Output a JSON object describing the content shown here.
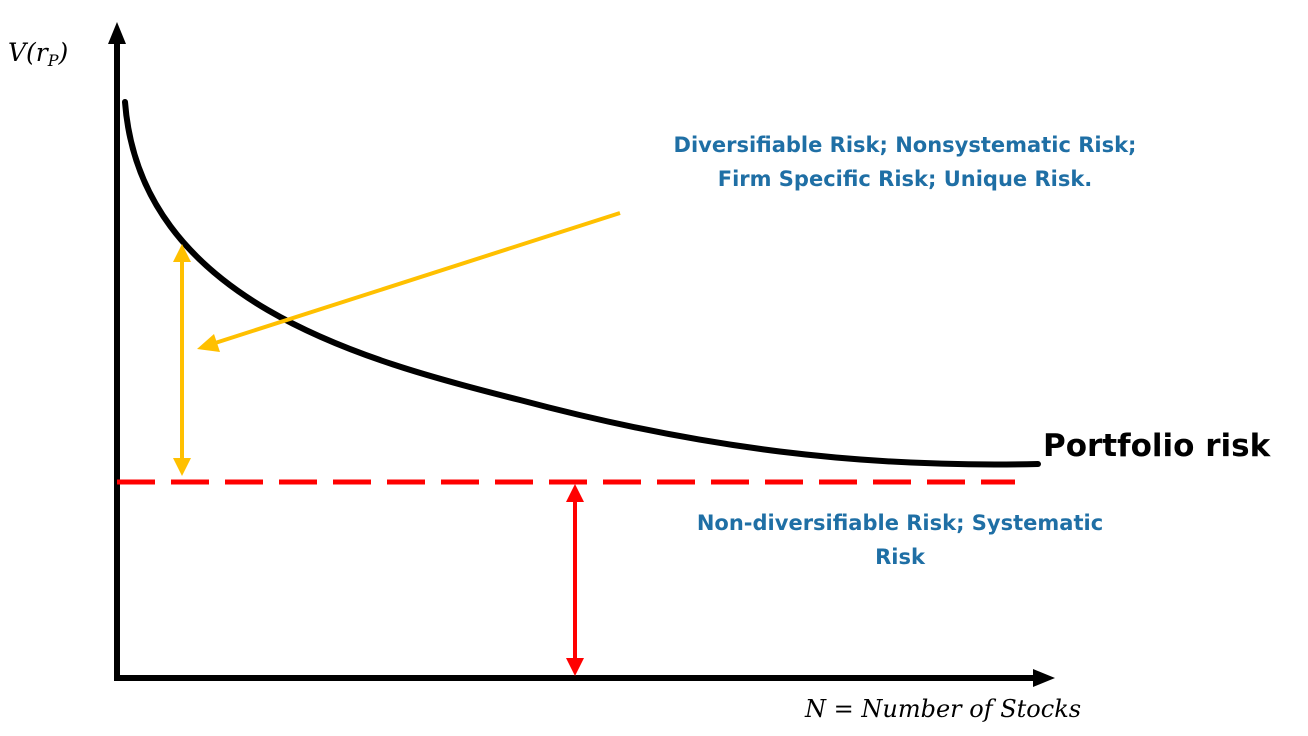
{
  "colors": {
    "curve": "#000000",
    "axis": "#000000",
    "systematic_line": "#ff0000",
    "systematic_arrow": "#ff0000",
    "diversifiable_arrow": "#ffc000",
    "annotation_text": "#1f6fa5"
  },
  "axes": {
    "y_label_main": "V(r",
    "y_label_sub": "P",
    "y_label_close": ")",
    "x_label": "N = Number of Stocks"
  },
  "curve": {
    "label": "Portfolio risk"
  },
  "annotations": {
    "diversifiable": {
      "line1": "Diversifiable Risk; Nonsystematic Risk;",
      "line2": "Firm Specific Risk; Unique Risk."
    },
    "non_diversifiable": {
      "line1": "Non-diversifiable Risk; Systematic",
      "line2": "Risk"
    }
  }
}
